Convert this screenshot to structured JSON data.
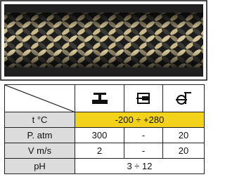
{
  "table": {
    "rows": [
      [
        "t °C",
        "-200 ÷ +280"
      ],
      [
        "P. atm",
        "300",
        "-",
        "20"
      ],
      [
        "V m/s",
        "2",
        "-",
        "20"
      ],
      [
        "pH",
        "3 ÷ 12"
      ]
    ]
  }
}
